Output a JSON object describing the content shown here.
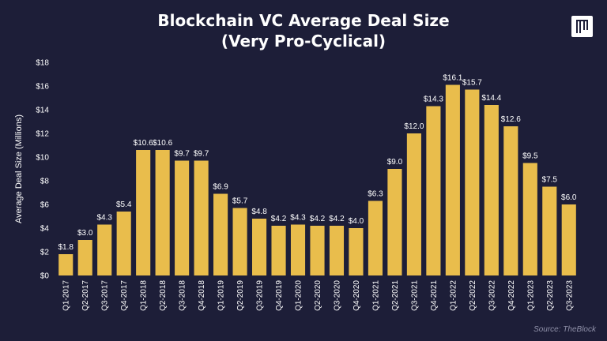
{
  "header": {
    "title_line1": "Blockchain VC Average Deal Size",
    "title_line2": "(Very Pro-Cyclical)"
  },
  "footer": {
    "source": "Source: TheBlock"
  },
  "colors": {
    "background": "#1d1e38",
    "bar": "#e9bd4c",
    "text": "#ffffff",
    "source_text": "#8f90a8"
  },
  "chart_data": {
    "type": "bar",
    "title": "Blockchain VC Average Deal Size (Very Pro-Cyclical)",
    "xlabel": "",
    "ylabel": "Average Deal Size (Millions)",
    "ylim": [
      0,
      18
    ],
    "yticks": [
      "$0",
      "$2",
      "$4",
      "$6",
      "$8",
      "$10",
      "$12",
      "$14",
      "$16",
      "$18"
    ],
    "grid": false,
    "legend": "none",
    "categories": [
      "Q1-2017",
      "Q2-2017",
      "Q3-2017",
      "Q4-2017",
      "Q1-2018",
      "Q2-2018",
      "Q3-2018",
      "Q4-2018",
      "Q1-2019",
      "Q2-2019",
      "Q3-2019",
      "Q4-2019",
      "Q1-2020",
      "Q2-2020",
      "Q3-2020",
      "Q4-2020",
      "Q1-2021",
      "Q2-2021",
      "Q3-2021",
      "Q4-2021",
      "Q1-2022",
      "Q2-2022",
      "Q3-2022",
      "Q4-2022",
      "Q1-2023",
      "Q2-2023",
      "Q3-2023"
    ],
    "values": [
      1.8,
      3.0,
      4.3,
      5.4,
      10.6,
      10.6,
      9.7,
      9.7,
      6.9,
      5.7,
      4.8,
      4.2,
      4.3,
      4.2,
      4.2,
      4.0,
      6.3,
      9.0,
      12.0,
      14.3,
      16.1,
      15.7,
      14.4,
      12.6,
      9.5,
      7.5,
      6.0
    ],
    "data_labels": [
      "$1.8",
      "$3.0",
      "$4.3",
      "$5.4",
      "$10.6",
      "$10.6",
      "$9.7",
      "$9.7",
      "$6.9",
      "$5.7",
      "$4.8",
      "$4.2",
      "$4.3",
      "$4.2",
      "$4.2",
      "$4.0",
      "$6.3",
      "$9.0",
      "$12.0",
      "$14.3",
      "$16.1",
      "$15.7",
      "$14.4",
      "$12.6",
      "$9.5",
      "$7.5",
      "$6.0"
    ]
  }
}
